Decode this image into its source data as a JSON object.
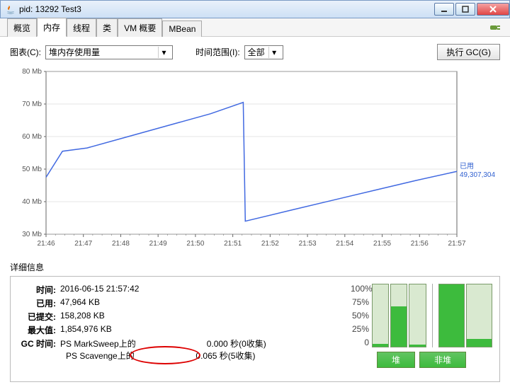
{
  "window": {
    "title": "pid: 13292 Test3"
  },
  "tabs": [
    {
      "label": "概览",
      "active": false
    },
    {
      "label": "内存",
      "active": true
    },
    {
      "label": "线程",
      "active": false
    },
    {
      "label": "类",
      "active": false
    },
    {
      "label": "VM 概要",
      "active": false
    },
    {
      "label": "MBean",
      "active": false
    }
  ],
  "controls": {
    "chart_label": "图表(C):",
    "chart_value": "堆内存使用量",
    "time_label": "时间范围(I):",
    "time_value": "全部",
    "gc_button": "执行 GC(G)"
  },
  "chart": {
    "type": "line",
    "series_color": "#4169e1",
    "grid_color": "#cccccc",
    "axis_color": "#666666",
    "text_color": "#555555",
    "y_label_font_size": 10,
    "x_label_font_size": 10,
    "y_ticks": [
      30,
      40,
      50,
      60,
      70,
      80
    ],
    "y_unit": " Mb",
    "ylim": [
      30,
      80
    ],
    "x_ticks": [
      "21:46",
      "21:47",
      "21:48",
      "21:49",
      "21:50",
      "21:51",
      "21:52",
      "21:53",
      "21:54",
      "21:55",
      "21:56",
      "21:57"
    ],
    "used_label": "已用",
    "used_value": "49,307,304",
    "line_points": [
      {
        "x": 0.0,
        "y": 47.5
      },
      {
        "x": 0.04,
        "y": 55.5
      },
      {
        "x": 0.1,
        "y": 56.5
      },
      {
        "x": 0.2,
        "y": 60.0
      },
      {
        "x": 0.3,
        "y": 63.5
      },
      {
        "x": 0.4,
        "y": 67.0
      },
      {
        "x": 0.48,
        "y": 70.5
      },
      {
        "x": 0.485,
        "y": 34.0
      },
      {
        "x": 0.6,
        "y": 37.5
      },
      {
        "x": 0.7,
        "y": 40.5
      },
      {
        "x": 0.8,
        "y": 43.5
      },
      {
        "x": 0.9,
        "y": 46.5
      },
      {
        "x": 1.0,
        "y": 49.3
      }
    ]
  },
  "details": {
    "title": "详细信息",
    "rows": {
      "time_label": "时间:",
      "time_value": "2016-06-15 21:57:42",
      "used_label": "已用:",
      "used_value": "47,964 KB",
      "committed_label": "已提交:",
      "committed_value": "158,208 KB",
      "max_label": "最大值:",
      "max_value": "1,854,976 KB",
      "gc_label": "GC 时间:",
      "gc_marksweep": "PS MarkSweep上的",
      "gc_marksweep_value": "0.000 秒(0收集)",
      "gc_scavenge": "PS Scavenge上的",
      "gc_scavenge_value": "0.065 秒(5收集)"
    }
  },
  "mini_chart": {
    "y_ticks": [
      "100%",
      "75%",
      "50%",
      "25%",
      "0"
    ],
    "heap_bars": [
      5,
      65,
      3
    ],
    "nonheap_bars": [
      100,
      12
    ],
    "bar_fill_color": "#3dbb3d",
    "bar_outline_color": "#7a9a6a",
    "bar_bg_color": "#d9e9d0",
    "heap_label": "堆",
    "nonheap_label": "非堆"
  }
}
